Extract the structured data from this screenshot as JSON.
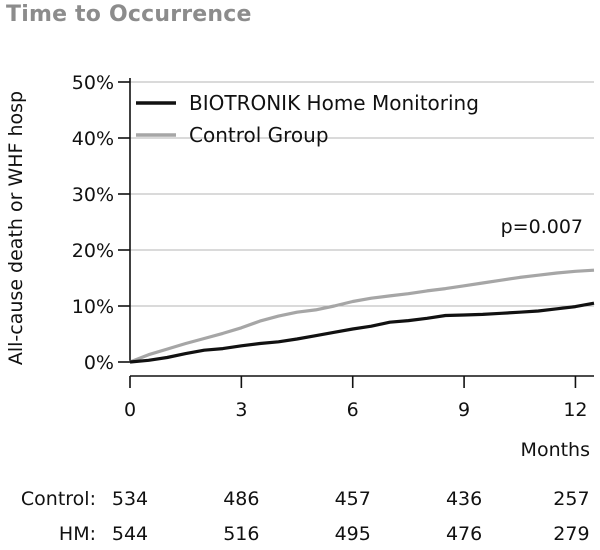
{
  "title": "Time to Occurrence",
  "chart_data": {
    "type": "line",
    "ylabel": "All-cause death or WHF hosp",
    "xlabel": "Months",
    "xlim": [
      0,
      12.5
    ],
    "ylim": [
      0,
      50
    ],
    "xticks": [
      0,
      3,
      6,
      9,
      12
    ],
    "yticks": [
      0,
      10,
      20,
      30,
      40,
      50
    ],
    "ytick_labels": [
      "0%",
      "10%",
      "20%",
      "30%",
      "40%",
      "50%"
    ],
    "annotation": "p=0.007",
    "legend_position": "top-left",
    "series": [
      {
        "name": "BIOTRONIK Home Monitoring",
        "color": "#111111",
        "x": [
          0,
          0.5,
          1.0,
          1.5,
          2.0,
          2.5,
          3.0,
          3.5,
          4.0,
          4.5,
          5.0,
          5.5,
          6.0,
          6.5,
          7.0,
          7.5,
          8.0,
          8.5,
          9.0,
          9.5,
          10.0,
          10.5,
          11.0,
          11.5,
          12.0,
          12.5
        ],
        "y": [
          0,
          0.3,
          0.8,
          1.5,
          2.1,
          2.4,
          2.9,
          3.3,
          3.6,
          4.1,
          4.7,
          5.3,
          5.9,
          6.4,
          7.1,
          7.4,
          7.8,
          8.3,
          8.4,
          8.5,
          8.7,
          8.9,
          9.1,
          9.5,
          9.9,
          10.5
        ]
      },
      {
        "name": "Control Group",
        "color": "#a6a6a6",
        "x": [
          0,
          0.5,
          1.0,
          1.5,
          2.0,
          2.5,
          3.0,
          3.5,
          4.0,
          4.5,
          5.0,
          5.5,
          6.0,
          6.5,
          7.0,
          7.5,
          8.0,
          8.5,
          9.0,
          9.5,
          10.0,
          10.5,
          11.0,
          11.5,
          12.0,
          12.5
        ],
        "y": [
          0,
          1.3,
          2.3,
          3.3,
          4.2,
          5.1,
          6.1,
          7.3,
          8.2,
          8.9,
          9.3,
          10.0,
          10.8,
          11.4,
          11.8,
          12.2,
          12.7,
          13.1,
          13.6,
          14.1,
          14.6,
          15.1,
          15.5,
          15.9,
          16.2,
          16.4
        ]
      }
    ]
  },
  "risk_table": {
    "rows": [
      {
        "label": "Control:",
        "values": [
          "534",
          "486",
          "457",
          "436",
          "257"
        ]
      },
      {
        "label": "HM:",
        "values": [
          "544",
          "516",
          "495",
          "476",
          "279"
        ]
      }
    ]
  }
}
